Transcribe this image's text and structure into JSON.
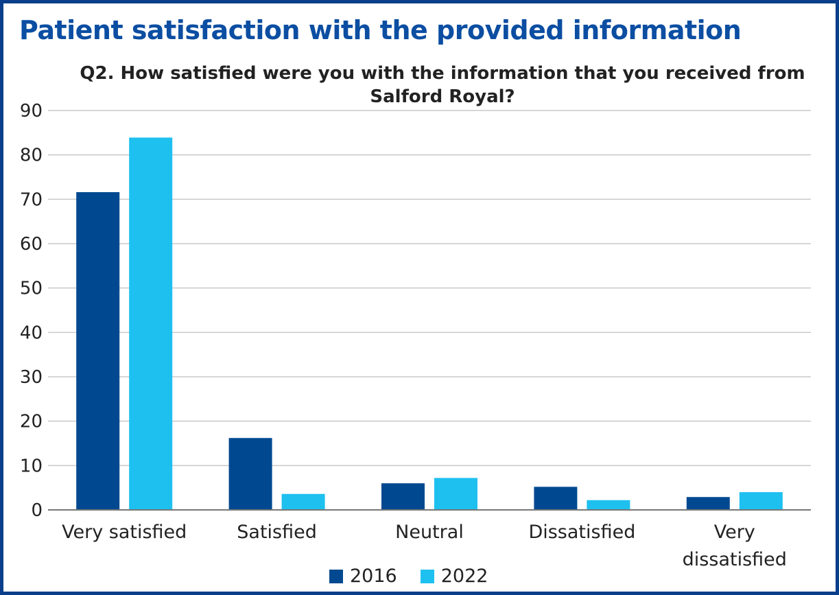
{
  "page_title": "Patient satisfaction with the provided information",
  "chart_data": {
    "type": "bar",
    "title": "Q2. How satisfied were you with the information that you received from Salford Royal?",
    "categories": [
      "Very satisfied",
      "Satisfied",
      "Neutral",
      "Dissatisfied",
      "Very dissatisfied"
    ],
    "series": [
      {
        "name": "2016",
        "color": "#004990",
        "values": [
          71.6,
          16.2,
          6.0,
          5.2,
          2.9
        ]
      },
      {
        "name": "2022",
        "color": "#1ec0ef",
        "values": [
          83.9,
          3.6,
          7.2,
          2.2,
          4.0
        ]
      }
    ],
    "ylim": [
      0,
      90
    ],
    "yticks": [
      0,
      10,
      20,
      30,
      40,
      50,
      60,
      70,
      80,
      90
    ],
    "grid": true,
    "legend_position": "bottom",
    "xlabel": "",
    "ylabel": ""
  }
}
